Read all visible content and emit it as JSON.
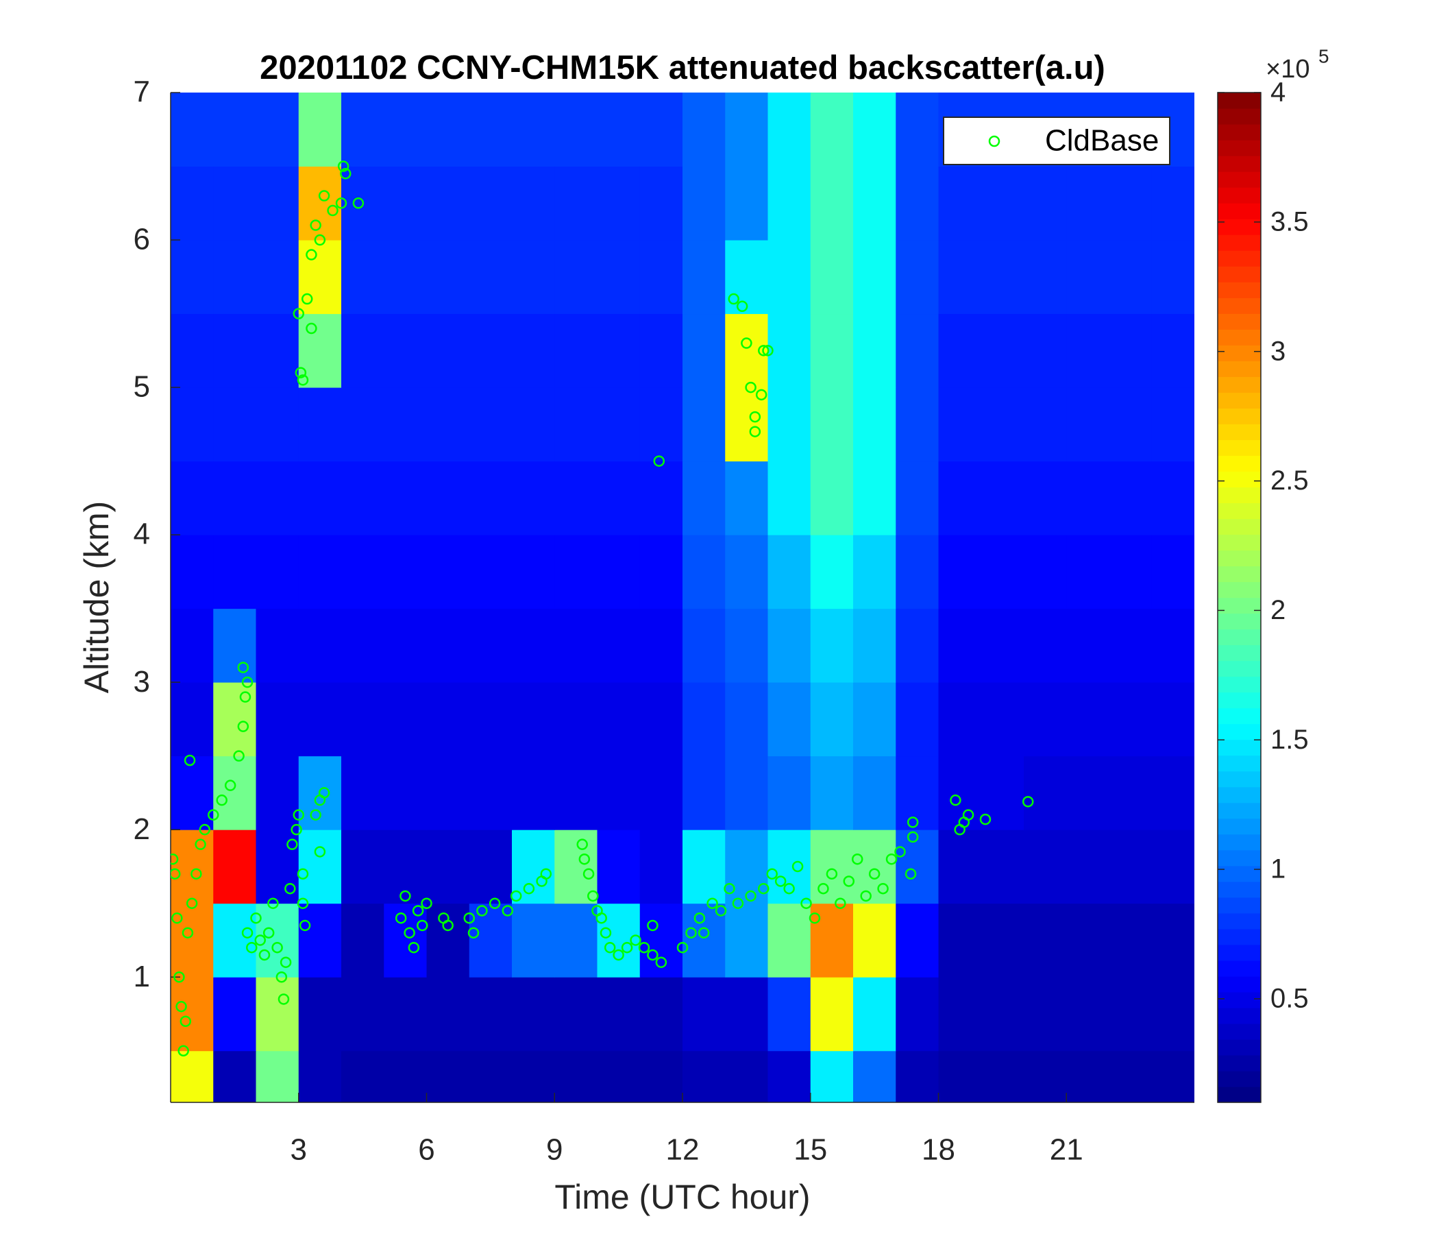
{
  "chart_data": {
    "type": "heatmap",
    "title": "20201102 CCNY-CHM15K attenuated backscatter(a.u)",
    "x_label": "Time (UTC hour)",
    "y_label": "Altitude (km)",
    "xlim": [
      0,
      24
    ],
    "ylim": [
      0.15,
      7
    ],
    "xticks": [
      3,
      6,
      9,
      12,
      15,
      18,
      21
    ],
    "yticks": [
      1,
      2,
      3,
      4,
      5,
      6,
      7
    ],
    "colormap": "jet",
    "clim": [
      0.1,
      4
    ],
    "cticks": [
      0.5,
      1,
      1.5,
      2,
      2.5,
      3,
      3.5,
      4
    ],
    "colorbar_multiplier": {
      "base": "×10",
      "exponent": "5"
    },
    "legend": "upper right",
    "heatmap": {
      "x": [
        0.5,
        1.5,
        2.5,
        3.5,
        4.5,
        5.5,
        6.5,
        7.5,
        8.5,
        9.5,
        10.5,
        11.5,
        12.5,
        13.5,
        14.5,
        15.5,
        16.5,
        17.5,
        18.5,
        19.5,
        20.5,
        21.5,
        22.5,
        23.5
      ],
      "y": [
        0.25,
        0.75,
        1.25,
        1.75,
        2.25,
        2.75,
        3.25,
        3.75,
        4.25,
        4.75,
        5.25,
        5.75,
        6.25,
        6.75
      ],
      "z": [
        [
          2.5,
          0.3,
          2.0,
          0.3,
          0.25,
          0.25,
          0.25,
          0.25,
          0.25,
          0.25,
          0.25,
          0.25,
          0.3,
          0.3,
          0.4,
          1.5,
          1.0,
          0.3,
          0.25,
          0.25,
          0.25,
          0.25,
          0.25,
          0.25
        ],
        [
          3.0,
          0.6,
          2.2,
          0.3,
          0.3,
          0.3,
          0.3,
          0.3,
          0.3,
          0.3,
          0.3,
          0.3,
          0.4,
          0.4,
          0.8,
          2.5,
          1.5,
          0.4,
          0.3,
          0.3,
          0.3,
          0.3,
          0.3,
          0.3
        ],
        [
          3.0,
          1.5,
          1.8,
          0.6,
          0.3,
          0.6,
          0.3,
          0.8,
          1.0,
          1.0,
          1.5,
          0.6,
          1.0,
          1.2,
          2.0,
          3.0,
          2.5,
          0.6,
          0.3,
          0.3,
          0.3,
          0.3,
          0.3,
          0.3
        ],
        [
          3.0,
          3.5,
          0.5,
          1.5,
          0.4,
          0.4,
          0.4,
          0.4,
          1.5,
          2.0,
          0.6,
          0.5,
          1.5,
          1.2,
          1.5,
          2.0,
          2.0,
          0.9,
          0.4,
          0.4,
          0.4,
          0.4,
          0.4,
          0.4
        ],
        [
          0.6,
          2.0,
          0.5,
          1.2,
          0.5,
          0.5,
          0.5,
          0.5,
          0.5,
          0.5,
          0.5,
          0.5,
          0.8,
          0.9,
          1.0,
          1.2,
          1.1,
          0.7,
          0.5,
          0.5,
          0.45,
          0.45,
          0.45,
          0.45
        ],
        [
          0.5,
          2.2,
          0.5,
          0.5,
          0.5,
          0.5,
          0.5,
          0.5,
          0.5,
          0.5,
          0.5,
          0.5,
          0.8,
          0.9,
          1.1,
          1.3,
          1.2,
          0.7,
          0.5,
          0.5,
          0.5,
          0.5,
          0.5,
          0.5
        ],
        [
          0.55,
          1.0,
          0.55,
          0.55,
          0.55,
          0.55,
          0.55,
          0.55,
          0.55,
          0.55,
          0.55,
          0.55,
          0.85,
          0.95,
          1.2,
          1.4,
          1.3,
          0.75,
          0.55,
          0.55,
          0.55,
          0.55,
          0.55,
          0.55
        ],
        [
          0.6,
          0.6,
          0.6,
          0.6,
          0.6,
          0.6,
          0.6,
          0.6,
          0.6,
          0.6,
          0.6,
          0.6,
          0.9,
          1.0,
          1.3,
          1.6,
          1.4,
          0.8,
          0.6,
          0.6,
          0.6,
          0.6,
          0.6,
          0.6
        ],
        [
          0.65,
          0.65,
          0.65,
          0.65,
          0.65,
          0.65,
          0.65,
          0.65,
          0.65,
          0.65,
          0.65,
          0.65,
          0.95,
          1.1,
          1.5,
          1.8,
          1.6,
          0.85,
          0.65,
          0.65,
          0.65,
          0.65,
          0.65,
          0.65
        ],
        [
          0.7,
          0.7,
          0.7,
          0.7,
          0.7,
          0.7,
          0.7,
          0.7,
          0.7,
          0.7,
          0.7,
          0.7,
          0.95,
          2.5,
          1.5,
          1.8,
          1.6,
          0.85,
          0.7,
          0.7,
          0.7,
          0.7,
          0.7,
          0.7
        ],
        [
          0.7,
          0.7,
          0.7,
          2.0,
          0.7,
          0.7,
          0.7,
          0.7,
          0.7,
          0.7,
          0.7,
          0.7,
          0.95,
          2.5,
          1.5,
          1.8,
          1.6,
          0.85,
          0.7,
          0.7,
          0.7,
          0.7,
          0.7,
          0.7
        ],
        [
          0.75,
          0.75,
          0.75,
          2.5,
          0.75,
          0.75,
          0.75,
          0.75,
          0.75,
          0.75,
          0.75,
          0.75,
          0.95,
          1.5,
          1.5,
          1.8,
          1.6,
          0.85,
          0.75,
          0.75,
          0.75,
          0.75,
          0.75,
          0.75
        ],
        [
          0.75,
          0.75,
          0.75,
          2.8,
          0.75,
          0.75,
          0.75,
          0.75,
          0.75,
          0.75,
          0.75,
          0.75,
          0.95,
          1.1,
          1.5,
          1.8,
          1.6,
          0.85,
          0.75,
          0.75,
          0.75,
          0.75,
          0.75,
          0.75
        ],
        [
          0.8,
          0.8,
          0.8,
          2.0,
          0.8,
          0.8,
          0.8,
          0.8,
          0.8,
          0.8,
          0.8,
          0.8,
          0.95,
          1.1,
          1.5,
          1.8,
          1.6,
          0.85,
          0.8,
          0.8,
          0.8,
          0.8,
          0.8,
          0.8
        ]
      ]
    },
    "series": [
      {
        "name": "CldBase",
        "type": "scatter",
        "color": "#00ff00",
        "x": [
          0.05,
          0.1,
          0.15,
          0.2,
          0.25,
          0.3,
          0.35,
          0.4,
          0.5,
          0.6,
          0.7,
          0.8,
          1.0,
          1.2,
          1.4,
          1.6,
          1.7,
          1.75,
          1.8,
          1.7,
          0.45,
          1.8,
          1.9,
          2.0,
          2.1,
          2.2,
          2.3,
          2.4,
          2.5,
          2.6,
          2.65,
          2.7,
          2.8,
          2.85,
          2.95,
          3.0,
          3.1,
          3.15,
          3.1,
          3.4,
          3.5,
          3.6,
          3.5,
          3.0,
          3.05,
          3.1,
          3.2,
          3.3,
          3.4,
          3.5,
          3.6,
          3.8,
          4.0,
          4.05,
          4.1,
          4.4,
          3.3,
          5.4,
          5.5,
          5.6,
          5.7,
          5.8,
          5.9,
          6.0,
          6.4,
          6.5,
          7.0,
          7.1,
          7.3,
          7.6,
          7.9,
          8.1,
          8.4,
          8.7,
          8.8,
          9.65,
          9.7,
          9.8,
          9.9,
          10.0,
          10.1,
          10.2,
          10.3,
          10.5,
          10.7,
          10.9,
          11.1,
          11.3,
          11.5,
          11.45,
          11.3,
          12.0,
          12.2,
          12.4,
          12.5,
          12.7,
          12.9,
          13.1,
          13.3,
          13.6,
          13.9,
          14.1,
          14.3,
          14.5,
          14.7,
          14.9,
          15.1,
          15.3,
          15.5,
          15.7,
          15.9,
          16.1,
          16.3,
          16.5,
          16.7,
          16.9,
          17.1,
          17.35,
          17.4,
          17.4,
          13.2,
          13.4,
          13.5,
          13.6,
          13.7,
          13.7,
          13.85,
          13.9,
          14.0,
          18.4,
          18.5,
          18.6,
          18.7,
          19.1,
          20.1
        ],
        "y": [
          1.8,
          1.7,
          1.4,
          1.0,
          0.8,
          0.5,
          0.7,
          1.3,
          1.5,
          1.7,
          1.9,
          2.0,
          2.1,
          2.2,
          2.3,
          2.5,
          2.7,
          2.9,
          3.0,
          3.1,
          2.47,
          1.3,
          1.2,
          1.4,
          1.25,
          1.15,
          1.3,
          1.5,
          1.2,
          1.0,
          0.85,
          1.1,
          1.6,
          1.9,
          2.0,
          2.1,
          1.5,
          1.35,
          1.7,
          2.1,
          2.2,
          2.25,
          1.85,
          5.5,
          5.1,
          5.05,
          5.6,
          5.9,
          6.1,
          6.0,
          6.3,
          6.2,
          6.25,
          6.5,
          6.45,
          6.25,
          5.4,
          1.4,
          1.55,
          1.3,
          1.2,
          1.45,
          1.35,
          1.5,
          1.4,
          1.35,
          1.4,
          1.3,
          1.45,
          1.5,
          1.45,
          1.55,
          1.6,
          1.65,
          1.7,
          1.9,
          1.8,
          1.7,
          1.55,
          1.45,
          1.4,
          1.3,
          1.2,
          1.15,
          1.2,
          1.25,
          1.2,
          1.15,
          1.1,
          4.5,
          1.35,
          1.2,
          1.3,
          1.4,
          1.3,
          1.5,
          1.45,
          1.6,
          1.5,
          1.55,
          1.6,
          1.7,
          1.65,
          1.6,
          1.75,
          1.5,
          1.4,
          1.6,
          1.7,
          1.5,
          1.65,
          1.8,
          1.55,
          1.7,
          1.6,
          1.8,
          1.85,
          1.7,
          1.95,
          2.05,
          5.6,
          5.55,
          5.3,
          5.0,
          4.8,
          4.7,
          4.95,
          5.25,
          5.25,
          2.2,
          2.0,
          2.05,
          2.1,
          2.07,
          2.19
        ]
      }
    ]
  }
}
